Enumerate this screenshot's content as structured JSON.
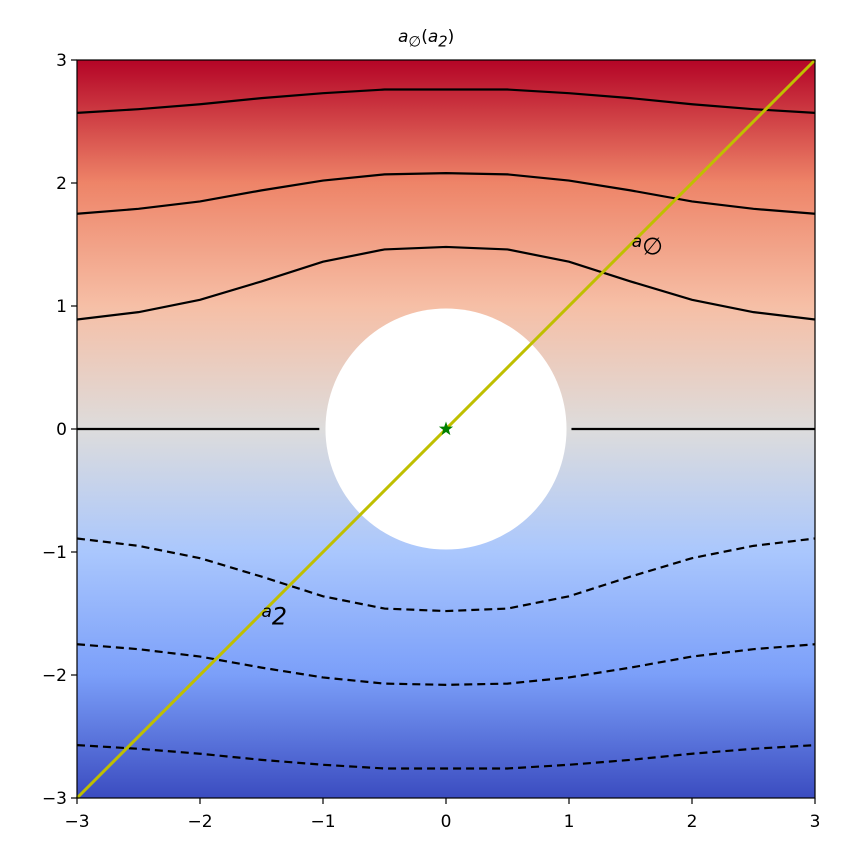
{
  "chart_data": {
    "type": "contour",
    "title": [
      {
        "text": "a"
      },
      {
        "text": "∅",
        "sub": true
      },
      {
        "text": "("
      },
      {
        "text": "a"
      },
      {
        "text": "2",
        "sub": true
      },
      {
        "text": ")"
      }
    ],
    "xlim": [
      -3,
      3
    ],
    "ylim": [
      -3,
      3
    ],
    "xticks": [
      {
        "value": -3,
        "label": "−3"
      },
      {
        "value": -2,
        "label": "−2"
      },
      {
        "value": -1,
        "label": "−1"
      },
      0,
      1,
      2,
      3
    ],
    "yticks": [
      {
        "value": -3,
        "label": "−3"
      },
      {
        "value": -2,
        "label": "−2"
      },
      {
        "value": -1,
        "label": "−1"
      },
      0,
      1,
      2,
      3
    ],
    "colormap": {
      "values": [
        3,
        2,
        1,
        0,
        -1,
        -2,
        -3
      ],
      "colors": [
        "#b40426",
        "#ee8468",
        "#f6bfa6",
        "#dddcdc",
        "#aac7fd",
        "#7b9ff9",
        "#3b4cc0"
      ]
    },
    "hole": {
      "center": [
        0,
        0
      ],
      "radius": 0.98,
      "color": "#ffffff"
    },
    "series": [
      {
        "color": "#000000",
        "dash": false,
        "x": [
          -3,
          -2.5,
          -2,
          -1.5,
          -1,
          -0.5,
          0,
          0.5,
          1,
          1.5,
          2,
          2.5,
          3
        ],
        "y": [
          2.57,
          2.6,
          2.64,
          2.69,
          2.73,
          2.76,
          2.76,
          2.76,
          2.73,
          2.69,
          2.64,
          2.6,
          2.57
        ]
      },
      {
        "color": "#000000",
        "dash": false,
        "x": [
          -3,
          -2.5,
          -2,
          -1.5,
          -1,
          -0.5,
          0,
          0.5,
          1,
          1.5,
          2,
          2.5,
          3
        ],
        "y": [
          1.75,
          1.79,
          1.85,
          1.94,
          2.02,
          2.07,
          2.08,
          2.07,
          2.02,
          1.94,
          1.85,
          1.79,
          1.75
        ]
      },
      {
        "color": "#000000",
        "dash": false,
        "x": [
          -3,
          -2.5,
          -2,
          -1.5,
          -1,
          -0.5,
          0,
          0.5,
          1,
          1.5,
          2,
          2.5,
          3
        ],
        "y": [
          0.89,
          0.95,
          1.05,
          1.2,
          1.36,
          1.46,
          1.48,
          1.46,
          1.36,
          1.2,
          1.05,
          0.95,
          0.89
        ]
      },
      {
        "color": "#000000",
        "dash": false,
        "x": [
          -3,
          -1.03,
          0,
          1.02,
          3
        ],
        "y": [
          0,
          0,
          null,
          0,
          0
        ]
      },
      {
        "color": "#000000",
        "dash": true,
        "x": [
          -3,
          -2.5,
          -2,
          -1.5,
          -1,
          -0.5,
          0,
          0.5,
          1,
          1.5,
          2,
          2.5,
          3
        ],
        "y": [
          -0.89,
          -0.95,
          -1.05,
          -1.2,
          -1.36,
          -1.46,
          -1.48,
          -1.46,
          -1.36,
          -1.2,
          -1.05,
          -0.95,
          -0.89
        ]
      },
      {
        "color": "#000000",
        "dash": true,
        "x": [
          -3,
          -2.5,
          -2,
          -1.5,
          -1,
          -0.5,
          0,
          0.5,
          1,
          1.5,
          2,
          2.5,
          3
        ],
        "y": [
          -1.75,
          -1.79,
          -1.85,
          -1.94,
          -2.02,
          -2.07,
          -2.08,
          -2.07,
          -2.02,
          -1.94,
          -1.85,
          -1.79,
          -1.75
        ]
      },
      {
        "color": "#000000",
        "dash": true,
        "x": [
          -3,
          -2.5,
          -2,
          -1.5,
          -1,
          -0.5,
          0,
          0.5,
          1,
          1.5,
          2,
          2.5,
          3
        ],
        "y": [
          -2.57,
          -2.6,
          -2.64,
          -2.69,
          -2.73,
          -2.76,
          -2.76,
          -2.76,
          -2.73,
          -2.69,
          -2.64,
          -2.6,
          -2.57
        ]
      },
      {
        "color": "#bfbf00",
        "dash": false,
        "width": 3,
        "x": [
          -3,
          3
        ],
        "y": [
          -3,
          3
        ]
      },
      {
        "color": "#008000",
        "marker": "star",
        "x": [
          0
        ],
        "y": [
          0
        ]
      }
    ],
    "annotations": [
      [
        {
          "text": "a"
        },
        {
          "text": "∅",
          "sub": true
        }
      ],
      [
        {
          "text": "a"
        },
        {
          "text": "2",
          "sub": true
        }
      ]
    ]
  }
}
